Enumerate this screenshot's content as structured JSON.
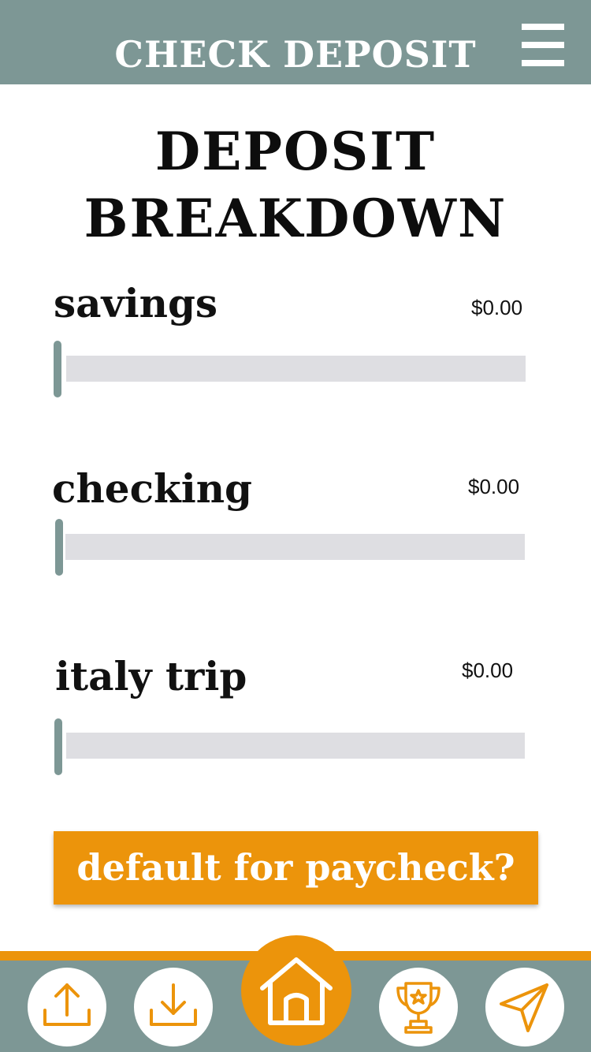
{
  "header": {
    "title": "CHECK DEPOSIT",
    "menu_icon": "hamburger-menu-icon"
  },
  "page": {
    "title_line1": "DEPOSIT",
    "title_line2": "BREAKDOWN"
  },
  "allocations": [
    {
      "label": "savings",
      "amount": "$0.00",
      "slider_fraction": 0
    },
    {
      "label": "checking",
      "amount": "$0.00",
      "slider_fraction": 0
    },
    {
      "label": "italy trip",
      "amount": "$0.00",
      "slider_fraction": 0
    }
  ],
  "default_button": {
    "label": "default for paycheck?"
  },
  "nav": {
    "items": [
      {
        "icon": "upload-icon"
      },
      {
        "icon": "download-icon"
      },
      {
        "icon": "home-icon",
        "active": true
      },
      {
        "icon": "trophy-icon"
      },
      {
        "icon": "send-icon"
      }
    ]
  },
  "colors": {
    "header": "#7d9795",
    "accent": "#ec940b",
    "track": "#dedee2",
    "text": "#111111",
    "white": "#ffffff"
  }
}
